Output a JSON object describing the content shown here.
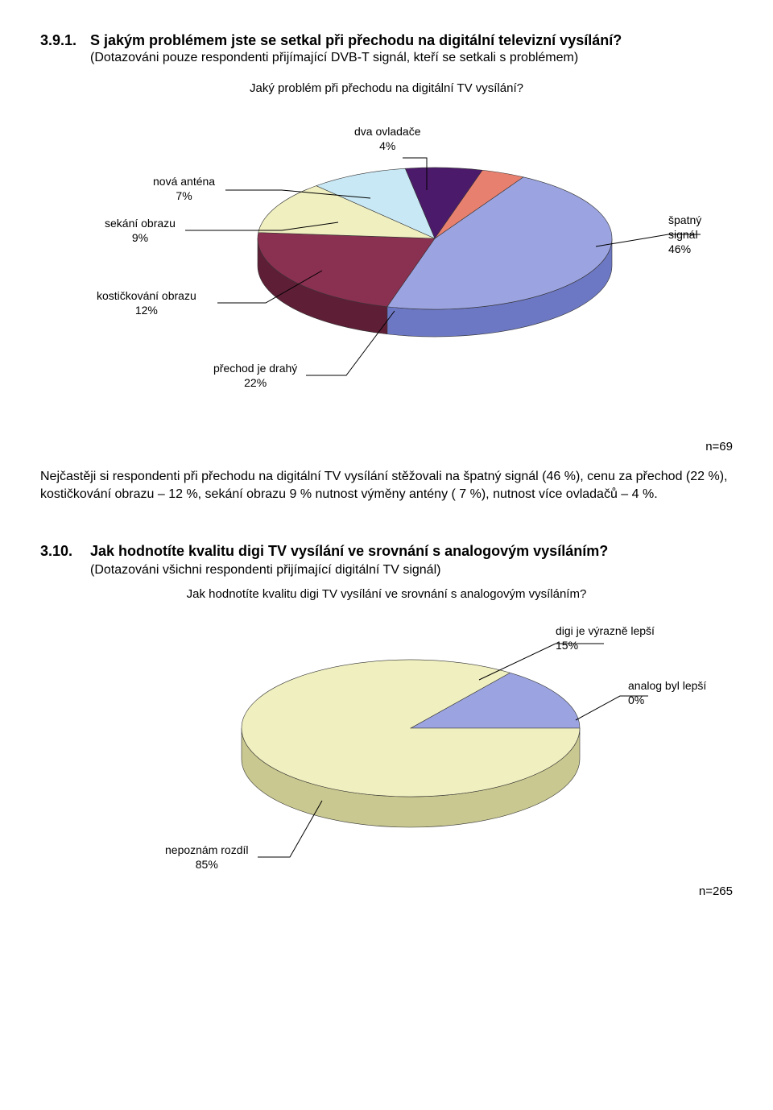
{
  "section1": {
    "number": "3.9.1.",
    "title": "S jakým problémem jste se setkal při přechodu na digitální televizní vysílání?",
    "subtitle": "(Dotazováni pouze respondenti přijímající DVB-T signál, kteří se setkali s problémem)",
    "chart": {
      "title": "Jaký problém při přechodu na digitální TV vysílání?",
      "background_color": "#ffffff",
      "slices": [
        {
          "label": "špatný signál",
          "percent": 46,
          "color_top": "#9ba4e0",
          "color_side": "#6d78c4"
        },
        {
          "label": "přechod je drahý",
          "percent": 22,
          "color_top": "#8a3050",
          "color_side": "#5e1f36"
        },
        {
          "label": "kostičkování obrazu",
          "percent": 12,
          "color_top": "#f0efc0",
          "color_side": "#c9c890"
        },
        {
          "label": "sekání obrazu",
          "percent": 9,
          "color_top": "#c8e8f5",
          "color_side": "#9ac6da"
        },
        {
          "label": "nová anténa",
          "percent": 7,
          "color_top": "#4b1a6a",
          "color_side": "#2f0f44"
        },
        {
          "label": "dva ovladače",
          "percent": 4,
          "color_top": "#e88070",
          "color_side": "#b85a4c"
        }
      ],
      "n": "n=69",
      "label_fontsize": 14,
      "title_fontsize": 15
    },
    "body": "Nejčastěji si respondenti při přechodu na digitální TV vysílání stěžovali na špatný signál (46 %), cenu za přechod (22 %), kostičkování obrazu – 12 %, sekání obrazu 9 % nutnost výměny antény ( 7 %), nutnost více ovladačů – 4 %."
  },
  "section2": {
    "number": "3.10.",
    "title": "Jak hodnotíte kvalitu digi TV vysílání ve srovnání s analogovým vysíláním?",
    "subtitle": "(Dotazováni všichni respondenti přijímající digitální TV signál)",
    "chart": {
      "title": "Jak hodnotíte kvalitu digi TV vysílání ve srovnání s analogovým vysíláním?",
      "background_color": "#ffffff",
      "slices": [
        {
          "label": "digi je výrazně lepší",
          "percent": 15,
          "color_top": "#9ba4e0",
          "color_side": "#6d78c4"
        },
        {
          "label": "analog byl lepší",
          "percent": 0,
          "color_top": "#8a3050",
          "color_side": "#5e1f36"
        },
        {
          "label": "nepoznám rozdíl",
          "percent": 85,
          "color_top": "#f0efc0",
          "color_side": "#c9c890"
        }
      ],
      "n": "n=265",
      "label_fontsize": 14,
      "title_fontsize": 15
    }
  }
}
